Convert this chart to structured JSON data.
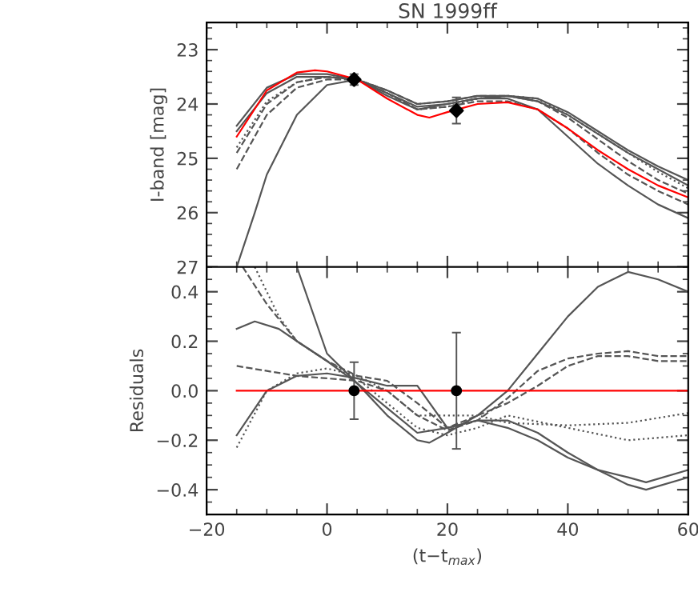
{
  "chart_data": [
    {
      "type": "line",
      "title": "SN 1999ff",
      "ylabel": "I-band [mag]",
      "xlim": [
        -20,
        60
      ],
      "xticks": [
        -20,
        0,
        20,
        40,
        60
      ],
      "ylim": [
        27,
        22.5
      ],
      "yticks": [
        23,
        24,
        25,
        26,
        27
      ],
      "tick_labels": "y",
      "grid": false,
      "legend": false,
      "series": [
        {
          "color": "#555555",
          "line_style": "solid",
          "x": [
            -15,
            -10,
            -5,
            0,
            5,
            10,
            15,
            20,
            25,
            30,
            35,
            40,
            45,
            50,
            55,
            60
          ],
          "values": [
            24.4,
            23.7,
            23.45,
            23.45,
            23.55,
            23.8,
            24.05,
            24.0,
            23.9,
            23.85,
            23.9,
            24.15,
            24.5,
            24.85,
            25.15,
            25.4
          ]
        },
        {
          "color": "#555555",
          "line_style": "dashed",
          "x": [
            -15,
            -10,
            -5,
            0,
            5,
            10,
            15,
            20,
            25,
            30,
            35,
            40,
            45,
            50,
            55,
            60
          ],
          "values": [
            25.2,
            24.2,
            23.7,
            23.55,
            23.55,
            23.75,
            24.0,
            23.95,
            23.85,
            23.85,
            23.95,
            24.25,
            24.65,
            25.05,
            25.4,
            25.65
          ]
        },
        {
          "color": "#555555",
          "line_style": "dotted",
          "x": [
            -15,
            -10,
            -5,
            0,
            5,
            10,
            15,
            20,
            25,
            30,
            35,
            40,
            45,
            50,
            55,
            60
          ],
          "values": [
            24.8,
            23.95,
            23.6,
            23.5,
            23.55,
            23.8,
            24.1,
            24.05,
            23.9,
            23.85,
            23.9,
            24.2,
            24.55,
            24.9,
            25.25,
            25.55
          ]
        },
        {
          "color": "#555555",
          "line_style": "solid",
          "x": [
            -15,
            -10,
            -5,
            0,
            5,
            10,
            15,
            20,
            25,
            30,
            35,
            40,
            45,
            50,
            55,
            60
          ],
          "values": [
            24.5,
            23.8,
            23.5,
            23.5,
            23.55,
            23.85,
            24.1,
            24.0,
            23.9,
            23.9,
            24.1,
            24.6,
            25.1,
            25.5,
            25.85,
            26.1
          ]
        },
        {
          "color": "#555555",
          "line_style": "dashed",
          "x": [
            -15,
            -10,
            -5,
            0,
            5,
            10,
            15,
            20,
            25,
            30,
            35,
            40,
            45,
            50,
            55,
            60
          ],
          "values": [
            24.9,
            24.0,
            23.6,
            23.5,
            23.55,
            23.8,
            24.1,
            24.05,
            23.95,
            23.95,
            24.1,
            24.45,
            24.9,
            25.3,
            25.6,
            25.85
          ]
        },
        {
          "color": "#555555",
          "line_style": "solid",
          "x": [
            -15,
            -12,
            -10,
            -5,
            0,
            5,
            10,
            15,
            20,
            25,
            30,
            35,
            40,
            45,
            50,
            55,
            60
          ],
          "values": [
            27.0,
            26.0,
            25.3,
            24.2,
            23.65,
            23.55,
            23.75,
            24.0,
            23.95,
            23.85,
            23.85,
            23.95,
            24.2,
            24.55,
            24.9,
            25.2,
            25.5
          ]
        },
        {
          "color": "#ff0000",
          "line_style": "solid",
          "x": [
            -15,
            -10,
            -5,
            -2,
            0,
            5,
            10,
            15,
            17,
            20,
            25,
            30,
            35,
            40,
            45,
            50,
            55,
            60
          ],
          "values": [
            24.6,
            23.75,
            23.42,
            23.38,
            23.4,
            23.55,
            23.9,
            24.2,
            24.25,
            24.15,
            24.0,
            23.97,
            24.1,
            24.45,
            24.85,
            25.2,
            25.5,
            25.72
          ]
        },
        {
          "type": "scatter",
          "color": "#000000",
          "marker": "diamond",
          "x": [
            4.5,
            21.5
          ],
          "values": [
            23.55,
            24.12
          ],
          "errors": [
            0.1,
            0.24
          ]
        }
      ]
    },
    {
      "type": "line",
      "xlabel": "(t−t$_{max}$)",
      "ylabel": "Residuals",
      "xlim": [
        -20,
        60
      ],
      "xticks": [
        {
          "value": -20,
          "label": "−20"
        },
        0,
        20,
        40,
        60
      ],
      "ylim": [
        -0.5,
        0.5
      ],
      "yticks": [
        {
          "value": -0.4,
          "label": "−0.4"
        },
        {
          "value": -0.2,
          "label": "−0.2"
        },
        {
          "value": 0,
          "label": "0.0"
        },
        {
          "value": 0.2,
          "label": "0.2"
        },
        {
          "value": 0.4,
          "label": "0.4"
        }
      ],
      "grid": false,
      "legend": false,
      "series": [
        {
          "color": "#555555",
          "line_style": "solid",
          "x": [
            -5,
            0,
            5,
            10,
            15,
            17,
            20,
            25,
            30,
            35,
            40,
            45,
            50,
            55,
            60
          ],
          "values": [
            0.5,
            0.15,
            0.03,
            -0.1,
            -0.2,
            -0.21,
            -0.17,
            -0.1,
            0.0,
            0.15,
            0.3,
            0.42,
            0.48,
            0.45,
            0.4
          ]
        },
        {
          "color": "#555555",
          "line_style": "solid",
          "x": [
            -15,
            -10,
            -5,
            0,
            5,
            10,
            15,
            20,
            25,
            30,
            35,
            40,
            45,
            50,
            53,
            60
          ],
          "values": [
            -0.18,
            0.0,
            0.06,
            0.07,
            0.05,
            0.02,
            0.02,
            -0.15,
            -0.12,
            -0.15,
            -0.2,
            -0.27,
            -0.32,
            -0.35,
            -0.37,
            -0.32
          ]
        },
        {
          "color": "#555555",
          "line_style": "solid",
          "x": [
            -15,
            -12,
            -8,
            -5,
            0,
            5,
            10,
            15,
            20,
            25,
            30,
            35,
            40,
            45,
            50,
            53,
            60
          ],
          "values": [
            0.25,
            0.28,
            0.25,
            0.2,
            0.12,
            0.03,
            -0.07,
            -0.17,
            -0.15,
            -0.12,
            -0.12,
            -0.17,
            -0.25,
            -0.32,
            -0.38,
            -0.4,
            -0.35
          ]
        },
        {
          "color": "#555555",
          "line_style": "dotted",
          "x": [
            -15,
            -10,
            -5,
            0,
            5,
            10,
            15,
            20,
            25,
            30,
            40,
            50,
            60
          ],
          "values": [
            -0.23,
            0.0,
            0.07,
            0.09,
            0.06,
            0.0,
            -0.1,
            -0.1,
            -0.1,
            -0.13,
            -0.14,
            -0.13,
            -0.09
          ]
        },
        {
          "color": "#555555",
          "line_style": "dashed",
          "x": [
            -15,
            -10,
            -5,
            0,
            5,
            10,
            15,
            20,
            25,
            30,
            35,
            40,
            45,
            50,
            55,
            60
          ],
          "values": [
            0.1,
            0.08,
            0.06,
            0.05,
            0.04,
            0.0,
            -0.1,
            -0.16,
            -0.12,
            -0.03,
            0.08,
            0.13,
            0.15,
            0.16,
            0.14,
            0.14
          ]
        },
        {
          "color": "#555555",
          "line_style": "dashed",
          "x": [
            -14,
            -10,
            -5,
            0,
            5,
            10,
            15,
            20,
            25,
            30,
            35,
            40,
            45,
            50,
            55,
            60
          ],
          "values": [
            0.5,
            0.35,
            0.2,
            0.12,
            0.06,
            0.04,
            -0.05,
            -0.15,
            -0.1,
            -0.05,
            0.02,
            0.1,
            0.14,
            0.14,
            0.12,
            0.12
          ]
        },
        {
          "color": "#555555",
          "line_style": "dotted",
          "x": [
            -12,
            -8,
            -5,
            0,
            5,
            10,
            15,
            20,
            25,
            30,
            40,
            50,
            60
          ],
          "values": [
            0.5,
            0.3,
            0.2,
            0.12,
            0.05,
            -0.05,
            -0.15,
            -0.18,
            -0.15,
            -0.1,
            -0.15,
            -0.2,
            -0.18
          ]
        },
        {
          "color": "#ff0000",
          "line_style": "solid",
          "x": [
            -15,
            60
          ],
          "values": [
            0.0,
            0.0
          ]
        },
        {
          "type": "scatter",
          "color": "#000000",
          "marker": "circle",
          "x": [
            4.5,
            21.5
          ],
          "values": [
            0.0,
            0.0
          ],
          "errors": [
            0.115,
            0.235
          ]
        }
      ]
    }
  ]
}
